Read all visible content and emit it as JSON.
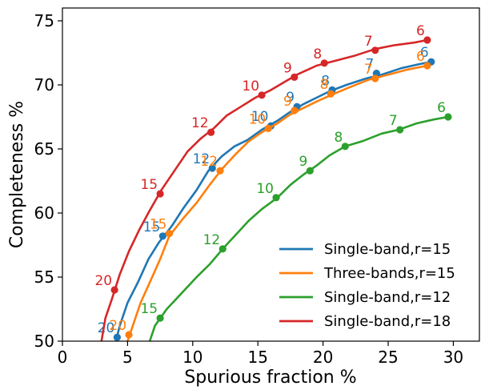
{
  "chart_data": {
    "type": "line",
    "xlabel": "Spurious fraction %",
    "ylabel": "Completeness %",
    "xlim": [
      0,
      32
    ],
    "ylim": [
      50,
      76
    ],
    "xticks": [
      0,
      5,
      10,
      15,
      20,
      25,
      30
    ],
    "yticks": [
      50,
      55,
      60,
      65,
      70,
      75
    ],
    "grid": false,
    "legend_position": "lower-right",
    "series": [
      {
        "name": "Single-band,r=15",
        "color": "#1f77b4",
        "curve": [
          [
            4.1,
            50.0
          ],
          [
            4.4,
            51.2
          ],
          [
            5.0,
            53.0
          ],
          [
            5.8,
            54.6
          ],
          [
            6.6,
            56.4
          ],
          [
            7.4,
            57.7
          ],
          [
            8.4,
            59.0
          ],
          [
            9.3,
            60.4
          ],
          [
            10.3,
            61.8
          ],
          [
            11.2,
            63.3
          ],
          [
            12.2,
            64.4
          ],
          [
            13.2,
            65.2
          ],
          [
            14.2,
            65.7
          ],
          [
            15.3,
            66.5
          ],
          [
            16.5,
            67.2
          ],
          [
            17.5,
            67.9
          ],
          [
            18.5,
            68.5
          ],
          [
            19.5,
            69.0
          ],
          [
            20.5,
            69.5
          ],
          [
            21.8,
            70.0
          ],
          [
            23.3,
            70.5
          ],
          [
            24.5,
            70.8
          ],
          [
            26.0,
            71.3
          ],
          [
            27.3,
            71.6
          ],
          [
            28.3,
            71.8
          ]
        ],
        "markers": [
          [
            28.3,
            71.8
          ],
          [
            24.1,
            70.9
          ],
          [
            20.7,
            69.6
          ],
          [
            18.0,
            68.3
          ],
          [
            16.0,
            66.8
          ],
          [
            11.5,
            63.5
          ],
          [
            7.7,
            58.2
          ],
          [
            4.2,
            50.3
          ]
        ],
        "labels": [
          "6",
          "7",
          "8",
          "9",
          "10",
          "12",
          "15",
          "20"
        ]
      },
      {
        "name": "Three-bands,r=15",
        "color": "#ff7f0e",
        "curve": [
          [
            5.0,
            50.0
          ],
          [
            5.4,
            51.2
          ],
          [
            6.0,
            53.0
          ],
          [
            6.8,
            54.8
          ],
          [
            7.5,
            56.4
          ],
          [
            8.2,
            58.2
          ],
          [
            9.2,
            59.5
          ],
          [
            10.3,
            60.8
          ],
          [
            11.3,
            62.2
          ],
          [
            12.3,
            63.5
          ],
          [
            13.3,
            64.6
          ],
          [
            14.3,
            65.6
          ],
          [
            15.3,
            66.3
          ],
          [
            16.5,
            67.0
          ],
          [
            17.5,
            67.7
          ],
          [
            18.5,
            68.2
          ],
          [
            19.5,
            68.7
          ],
          [
            20.6,
            69.2
          ],
          [
            22.0,
            69.8
          ],
          [
            23.5,
            70.4
          ],
          [
            25.0,
            70.8
          ],
          [
            26.5,
            71.2
          ],
          [
            28.0,
            71.5
          ]
        ],
        "markers": [
          [
            28.0,
            71.5
          ],
          [
            24.0,
            70.5
          ],
          [
            20.6,
            69.3
          ],
          [
            17.8,
            68.0
          ],
          [
            15.8,
            66.6
          ],
          [
            12.1,
            63.3
          ],
          [
            8.2,
            58.4
          ],
          [
            5.1,
            50.5
          ]
        ],
        "labels": [
          "6",
          "7",
          "8",
          "9",
          "10",
          "12",
          "15",
          "20"
        ]
      },
      {
        "name": "Single-band,r=12",
        "color": "#2ca02c",
        "curve": [
          [
            6.7,
            50.0
          ],
          [
            7.1,
            51.2
          ],
          [
            8.0,
            52.5
          ],
          [
            9.2,
            53.8
          ],
          [
            10.3,
            55.0
          ],
          [
            11.3,
            56.0
          ],
          [
            12.3,
            57.2
          ],
          [
            13.3,
            58.3
          ],
          [
            14.3,
            59.4
          ],
          [
            15.3,
            60.3
          ],
          [
            16.5,
            61.2
          ],
          [
            17.5,
            62.2
          ],
          [
            18.5,
            63.0
          ],
          [
            19.5,
            63.7
          ],
          [
            20.5,
            64.5
          ],
          [
            21.7,
            65.2
          ],
          [
            23.0,
            65.6
          ],
          [
            24.5,
            66.2
          ],
          [
            25.8,
            66.5
          ],
          [
            27.2,
            67.0
          ],
          [
            28.5,
            67.3
          ],
          [
            29.6,
            67.5
          ]
        ],
        "markers": [
          [
            29.6,
            67.5
          ],
          [
            25.9,
            66.5
          ],
          [
            21.7,
            65.2
          ],
          [
            19.0,
            63.3
          ],
          [
            16.4,
            61.2
          ],
          [
            12.3,
            57.2
          ],
          [
            7.5,
            51.8
          ]
        ],
        "labels": [
          "6",
          "7",
          "8",
          "9",
          "10",
          "12",
          "15"
        ]
      },
      {
        "name": "Single-band,r=18",
        "color": "#d62728",
        "curve": [
          [
            3.0,
            50.0
          ],
          [
            3.3,
            51.8
          ],
          [
            3.8,
            53.3
          ],
          [
            4.4,
            55.2
          ],
          [
            5.1,
            57.0
          ],
          [
            5.9,
            58.7
          ],
          [
            6.7,
            60.2
          ],
          [
            7.6,
            61.8
          ],
          [
            8.6,
            63.3
          ],
          [
            9.6,
            64.8
          ],
          [
            10.6,
            65.8
          ],
          [
            11.6,
            66.6
          ],
          [
            12.6,
            67.6
          ],
          [
            13.7,
            68.3
          ],
          [
            14.8,
            69.0
          ],
          [
            16.0,
            69.6
          ],
          [
            17.0,
            70.2
          ],
          [
            18.0,
            70.8
          ],
          [
            19.5,
            71.5
          ],
          [
            21.0,
            71.9
          ],
          [
            22.5,
            72.3
          ],
          [
            24.0,
            72.8
          ],
          [
            25.5,
            73.1
          ],
          [
            27.0,
            73.3
          ],
          [
            28.0,
            73.5
          ]
        ],
        "markers": [
          [
            28.0,
            73.5
          ],
          [
            24.0,
            72.7
          ],
          [
            20.1,
            71.7
          ],
          [
            17.8,
            70.6
          ],
          [
            15.3,
            69.2
          ],
          [
            11.4,
            66.3
          ],
          [
            7.5,
            61.5
          ],
          [
            4.0,
            54.0
          ]
        ],
        "labels": [
          "6",
          "7",
          "8",
          "9",
          "10",
          "12",
          "15",
          "20"
        ]
      }
    ]
  }
}
